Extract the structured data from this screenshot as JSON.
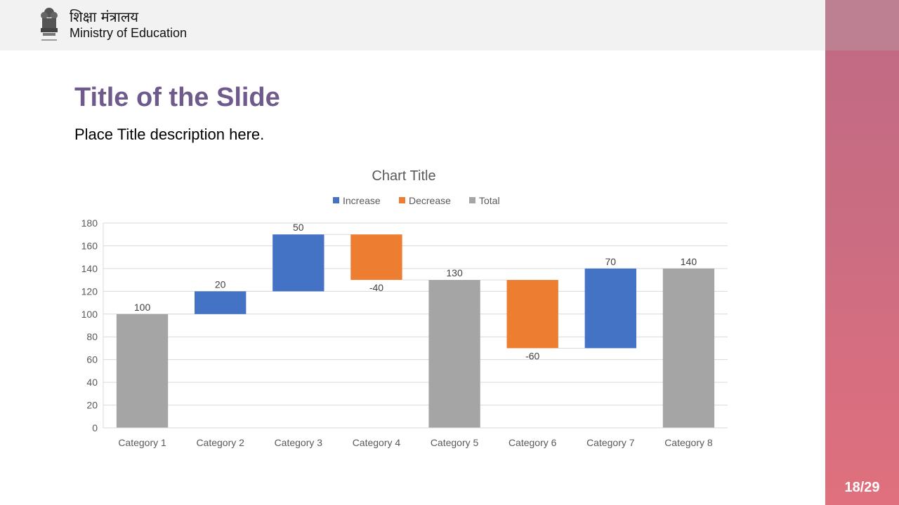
{
  "header": {
    "ministry_hindi": "शिक्षा मंत्रालय",
    "ministry_english": "Ministry of Education"
  },
  "slide": {
    "title": "Title of the Slide",
    "description": "Place Title description here.",
    "page_number": "18/29"
  },
  "colors": {
    "increase": "#4472c4",
    "decrease": "#ed7d31",
    "total": "#a5a5a5",
    "title_purple": "#6f5a8c"
  },
  "chart_data": {
    "type": "bar",
    "subtype": "waterfall",
    "title": "Chart Title",
    "legend": [
      "Increase",
      "Decrease",
      "Total"
    ],
    "legend_position": "top",
    "ylim": [
      0,
      180
    ],
    "yticks": [
      0,
      20,
      40,
      60,
      80,
      100,
      120,
      140,
      160,
      180
    ],
    "grid": true,
    "categories": [
      "Category 1",
      "Category 2",
      "Category 3",
      "Category 4",
      "Category 5",
      "Category 6",
      "Category 7",
      "Category 8"
    ],
    "bars": [
      {
        "category": "Category 1",
        "kind": "Total",
        "start": 0,
        "end": 100,
        "label": "100"
      },
      {
        "category": "Category 2",
        "kind": "Increase",
        "start": 100,
        "end": 120,
        "label": "20"
      },
      {
        "category": "Category 3",
        "kind": "Increase",
        "start": 120,
        "end": 170,
        "label": "50"
      },
      {
        "category": "Category 4",
        "kind": "Decrease",
        "start": 170,
        "end": 130,
        "label": "-40"
      },
      {
        "category": "Category 5",
        "kind": "Total",
        "start": 0,
        "end": 130,
        "label": "130"
      },
      {
        "category": "Category 6",
        "kind": "Decrease",
        "start": 130,
        "end": 70,
        "label": "-60"
      },
      {
        "category": "Category 7",
        "kind": "Increase",
        "start": 70,
        "end": 140,
        "label": "70"
      },
      {
        "category": "Category 8",
        "kind": "Total",
        "start": 0,
        "end": 140,
        "label": "140"
      }
    ]
  }
}
